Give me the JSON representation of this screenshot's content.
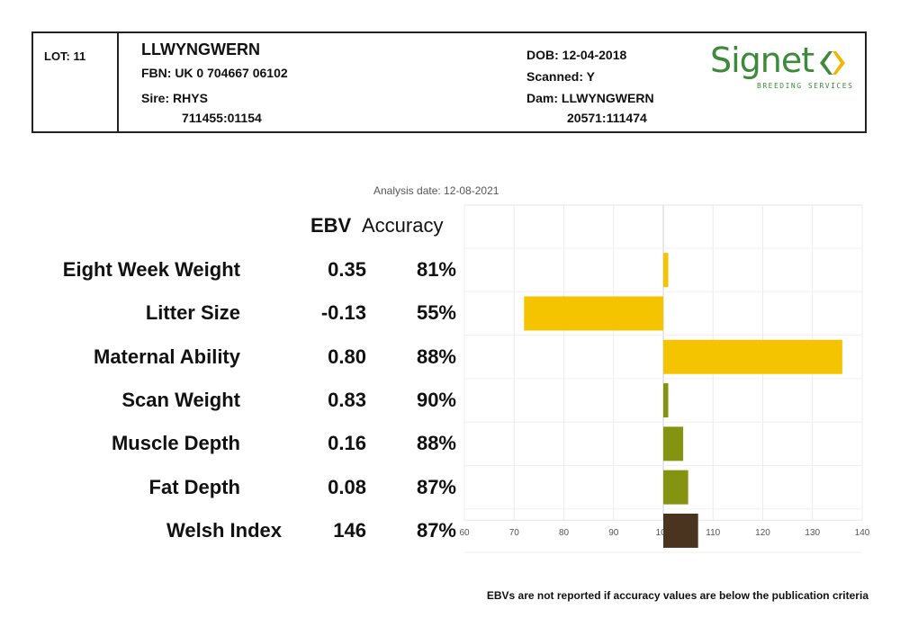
{
  "header": {
    "lot": "LOT: 11",
    "name": "LLWYNGWERN",
    "fbn": "FBN: UK 0 704667 06102",
    "sire_label": "Sire: RHYS",
    "sire_id": "711455:01154",
    "dob": "DOB: 12-04-2018",
    "scanned": "Scanned: Y",
    "dam_label": "Dam: LLWYNGWERN",
    "dam_id": "20571:111474",
    "logo_text": "Signet",
    "logo_sub": "BREEDING SERVICES",
    "logo_colors": {
      "green": "#3d8a3a",
      "amber": "#f2b600"
    }
  },
  "analysis_date": "Analysis date: 12-08-2021",
  "columns": {
    "ebv": "EBV",
    "accuracy": "Accuracy"
  },
  "footnote": "EBVs are not reported if accuracy values are below the publication criteria",
  "chart_data": {
    "type": "bar",
    "orientation": "horizontal",
    "baseline": 100,
    "xlim": [
      60,
      140
    ],
    "xticks": [
      "60",
      "70",
      "80",
      "90",
      "100",
      "110",
      "120",
      "130",
      "140"
    ],
    "grid": true,
    "categories": [
      "Eight Week Weight",
      "Litter Size",
      "Maternal Ability",
      "Scan Weight",
      "Muscle Depth",
      "Fat Depth",
      "Welsh Index"
    ],
    "ebv": [
      "0.35",
      "-0.13",
      "0.80",
      "0.83",
      "0.16",
      "0.08",
      "146"
    ],
    "accuracy": [
      "81%",
      "55%",
      "88%",
      "90%",
      "88%",
      "87%",
      "87%"
    ],
    "values": [
      101,
      72,
      136,
      101,
      104,
      105,
      107
    ],
    "colors": [
      "#f5c400",
      "#f5c400",
      "#f5c400",
      "#849410",
      "#849410",
      "#849410",
      "#4a3420"
    ]
  }
}
